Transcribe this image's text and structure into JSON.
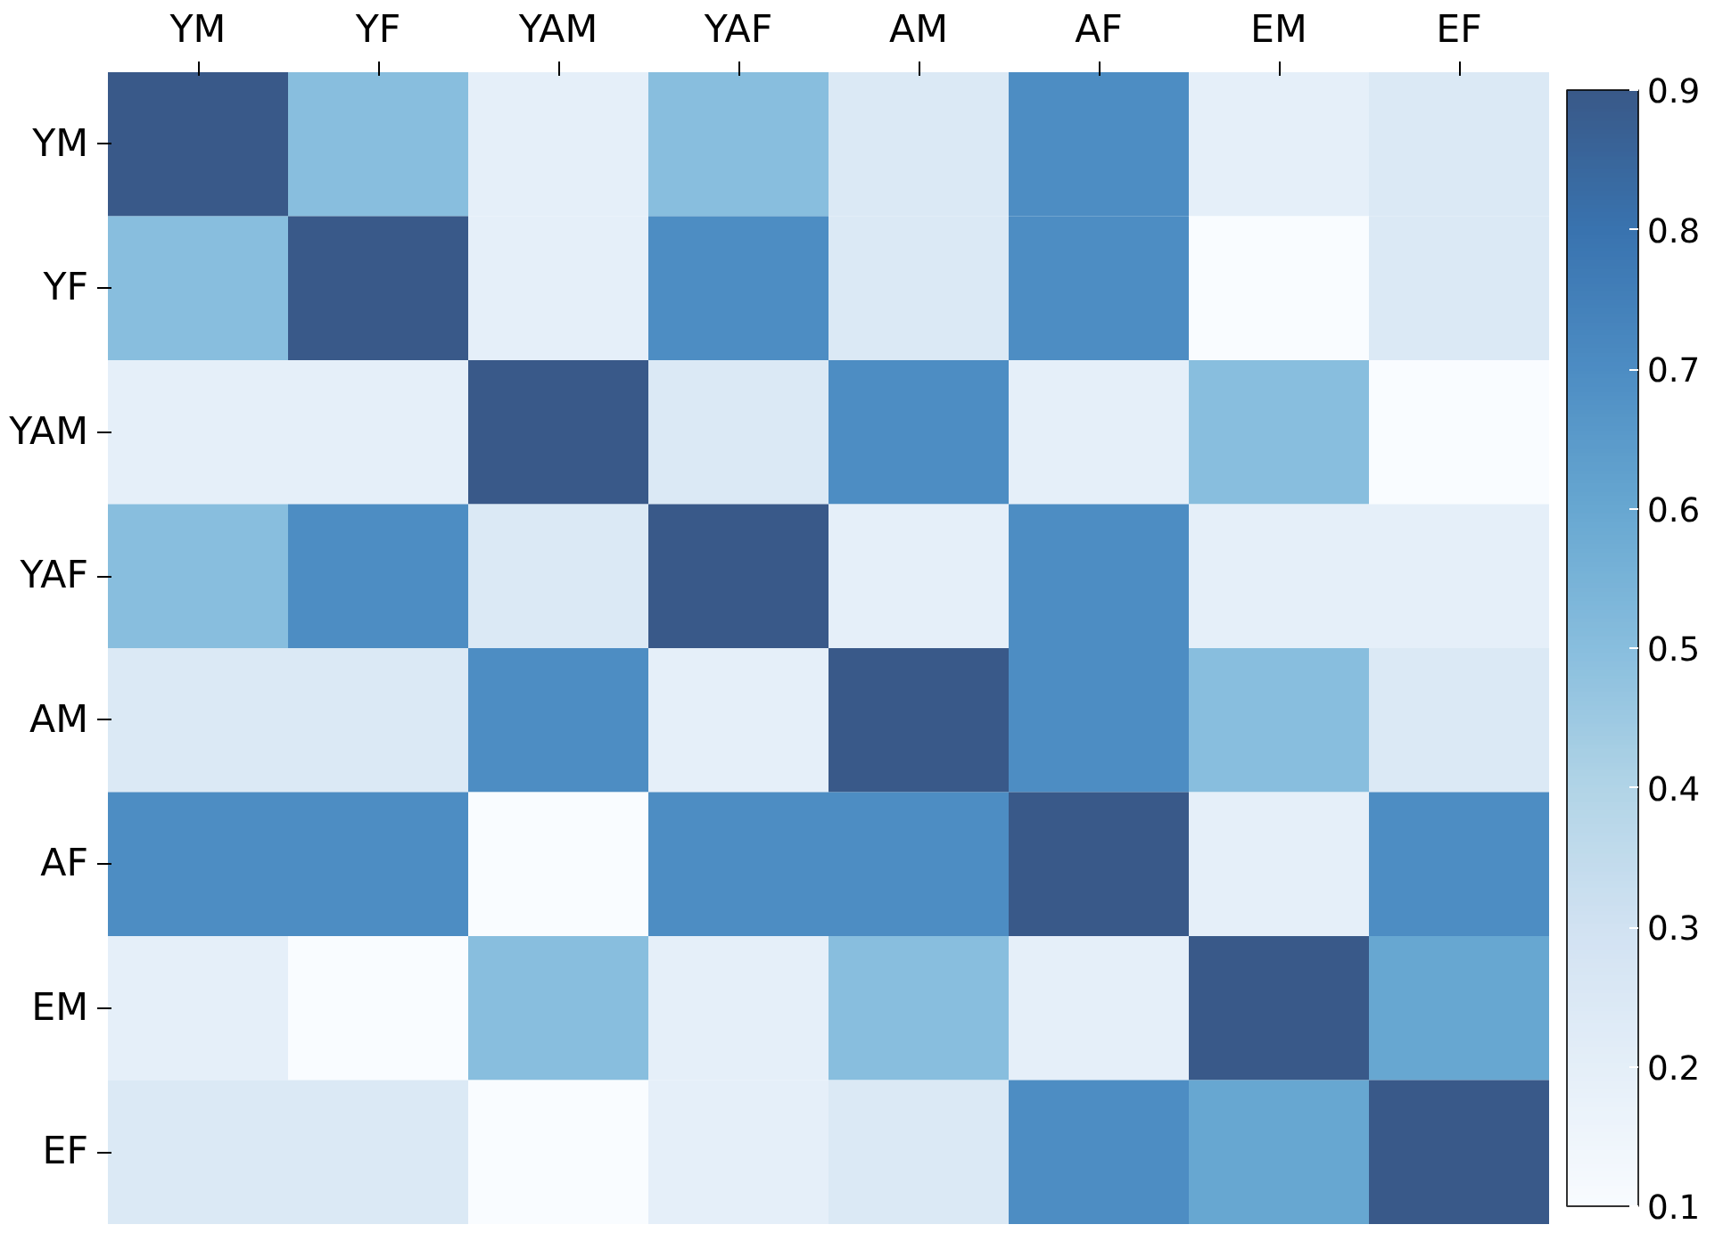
{
  "chart_data": {
    "type": "heatmap",
    "categories": [
      "YM",
      "YF",
      "YAM",
      "YAF",
      "AM",
      "AF",
      "EM",
      "EF"
    ],
    "y_categories": [
      "YM",
      "YF",
      "YAM",
      "YAF",
      "AM",
      "AF",
      "EM",
      "EF"
    ],
    "cells": [
      [
        0.9,
        0.5,
        0.2,
        0.5,
        0.25,
        0.7,
        0.2,
        0.25
      ],
      [
        0.5,
        0.9,
        0.2,
        0.7,
        0.25,
        0.7,
        0.1,
        0.25
      ],
      [
        0.2,
        0.2,
        0.9,
        0.25,
        0.7,
        0.2,
        0.5,
        0.1
      ],
      [
        0.5,
        0.7,
        0.25,
        0.9,
        0.2,
        0.7,
        0.2,
        0.2
      ],
      [
        0.25,
        0.25,
        0.7,
        0.2,
        0.9,
        0.7,
        0.5,
        0.25
      ],
      [
        0.7,
        0.7,
        0.1,
        0.7,
        0.7,
        0.9,
        0.2,
        0.7
      ],
      [
        0.2,
        0.1,
        0.5,
        0.2,
        0.5,
        0.2,
        0.9,
        0.6
      ],
      [
        0.25,
        0.25,
        0.1,
        0.2,
        0.25,
        0.7,
        0.6,
        0.9
      ]
    ],
    "clim": [
      0.1,
      0.9
    ],
    "cticks": [
      0.1,
      0.2,
      0.3,
      0.4,
      0.5,
      0.6,
      0.7,
      0.8,
      0.9
    ]
  }
}
